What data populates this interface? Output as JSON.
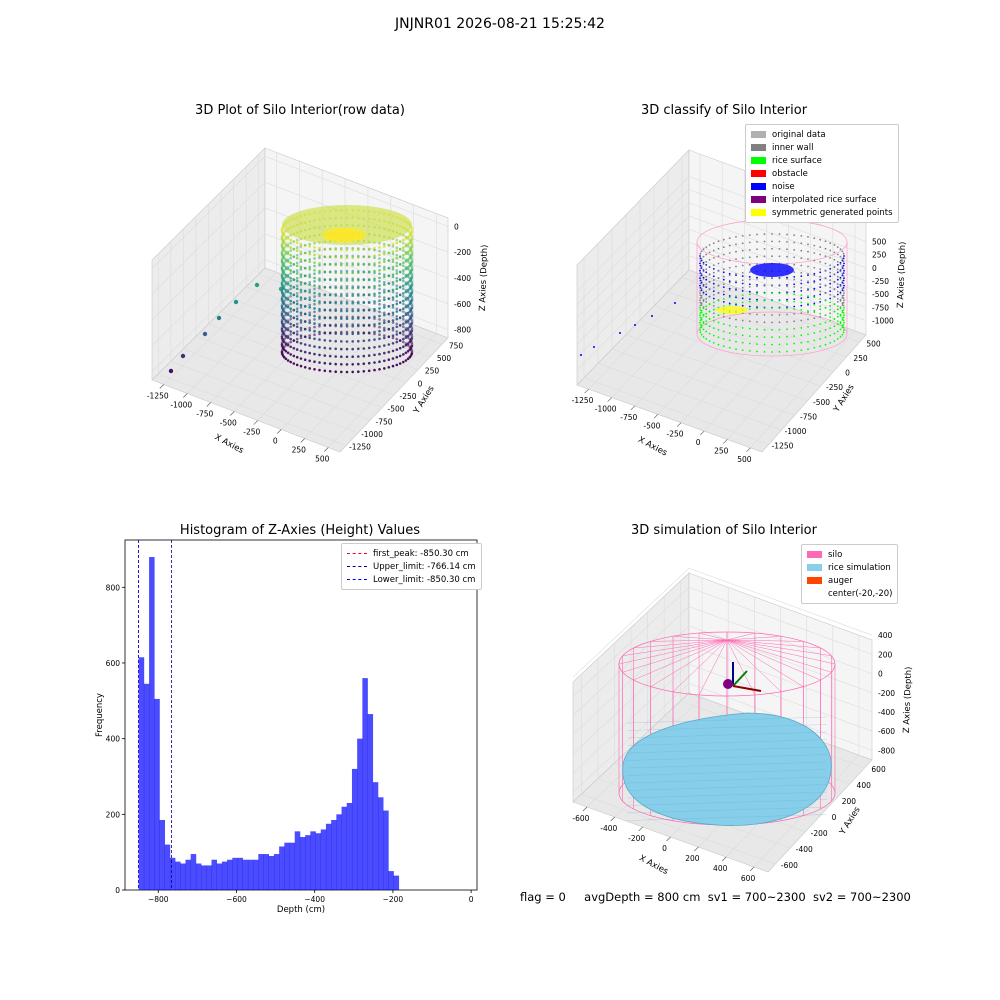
{
  "figure_title": "JNJNR01 2026-08-21 15:25:42",
  "status": {
    "flag": "flag = 0",
    "avg_depth": "avgDepth = 800 cm",
    "sv1": "sv1 = 700~2300",
    "sv2": "sv2 = 700~2300"
  },
  "chart_data": [
    {
      "type": "scatter",
      "title": "3D Plot of Silo Interior(row data)",
      "xlabel": "X Axies",
      "ylabel": "Y Axies",
      "zlabel": "Z Axies (Depth)",
      "x_ticks": [
        "-1250",
        "-1000",
        "-750",
        "-500",
        "-250",
        "0",
        "250",
        "500"
      ],
      "y_ticks": [
        "750",
        "500",
        "250",
        "0",
        "-250",
        "-500",
        "-750",
        "-1000",
        "-1250"
      ],
      "z_ticks": [
        "0",
        "-200",
        "-400",
        "-600",
        "-800"
      ],
      "colormap": "viridis"
    },
    {
      "type": "scatter",
      "title": "3D classify of Silo Interior",
      "xlabel": "X Axies",
      "ylabel": "Y Axies",
      "zlabel": "Z Axies (Depth)",
      "x_ticks": [
        "-1250",
        "-1000",
        "-750",
        "-500",
        "-250",
        "0",
        "250",
        "500"
      ],
      "y_ticks": [
        "500",
        "250",
        "0",
        "-250",
        "-500",
        "-750",
        "-1000",
        "-1250"
      ],
      "z_ticks": [
        "500",
        "250",
        "0",
        "-250",
        "-500",
        "-750",
        "-1000"
      ],
      "legend": [
        {
          "label": "original data",
          "color": "#b0b0b0"
        },
        {
          "label": "inner wall",
          "color": "#808080"
        },
        {
          "label": "rice surface",
          "color": "#00ff00"
        },
        {
          "label": "obstacle",
          "color": "#ff0000"
        },
        {
          "label": "noise",
          "color": "#0000ff"
        },
        {
          "label": "interpolated rice surface",
          "color": "#800080"
        },
        {
          "label": "symmetric generated points",
          "color": "#ffff00"
        }
      ]
    },
    {
      "type": "bar",
      "title": "Histogram of Z-Axies (Height) Values",
      "xlabel": "Depth (cm)",
      "ylabel": "Frequency",
      "xlim": [
        -885,
        15
      ],
      "ylim": [
        0,
        925
      ],
      "x_ticks": [
        -800,
        -600,
        -400,
        -200,
        0
      ],
      "y_ticks": [
        0,
        200,
        400,
        600,
        800
      ],
      "bin_start": -850,
      "bin_width": 13.3,
      "bar_color": "#0000ff",
      "values": [
        615,
        545,
        880,
        505,
        185,
        120,
        85,
        75,
        70,
        80,
        95,
        70,
        65,
        65,
        80,
        70,
        75,
        80,
        85,
        85,
        80,
        80,
        80,
        95,
        95,
        90,
        95,
        115,
        125,
        125,
        155,
        140,
        145,
        155,
        150,
        160,
        175,
        185,
        200,
        220,
        230,
        320,
        400,
        560,
        465,
        285,
        245,
        210,
        50,
        38
      ],
      "vlines": [
        {
          "label": "first_peak: -850.30 cm",
          "value": -850.3,
          "color": "#ff0000"
        },
        {
          "label": "Upper_limit: -766.14 cm",
          "value": -766.14,
          "color": "#00008b"
        },
        {
          "label": "Lower_limit: -850.30 cm",
          "value": -850.3,
          "color": "#0000ff"
        }
      ]
    },
    {
      "type": "area",
      "title": "3D simulation of Silo Interior",
      "xlabel": "X Axies",
      "ylabel": "Y Axies",
      "zlabel": "Z Axies (Depth)",
      "x_ticks": [
        "-600",
        "-400",
        "-200",
        "0",
        "200",
        "400",
        "600"
      ],
      "y_ticks": [
        "600",
        "400",
        "200",
        "0",
        "-200",
        "-400",
        "-600"
      ],
      "z_ticks": [
        "400",
        "200",
        "0",
        "-200",
        "-400",
        "-600",
        "-800"
      ],
      "legend": [
        {
          "label": "silo",
          "color": "#ff69b4"
        },
        {
          "label": "rice simulation",
          "color": "#87ceeb"
        },
        {
          "label": "auger",
          "color": "#ff4500"
        },
        {
          "label": "center(-20,-20)",
          "color": "#ffffff"
        }
      ]
    }
  ]
}
